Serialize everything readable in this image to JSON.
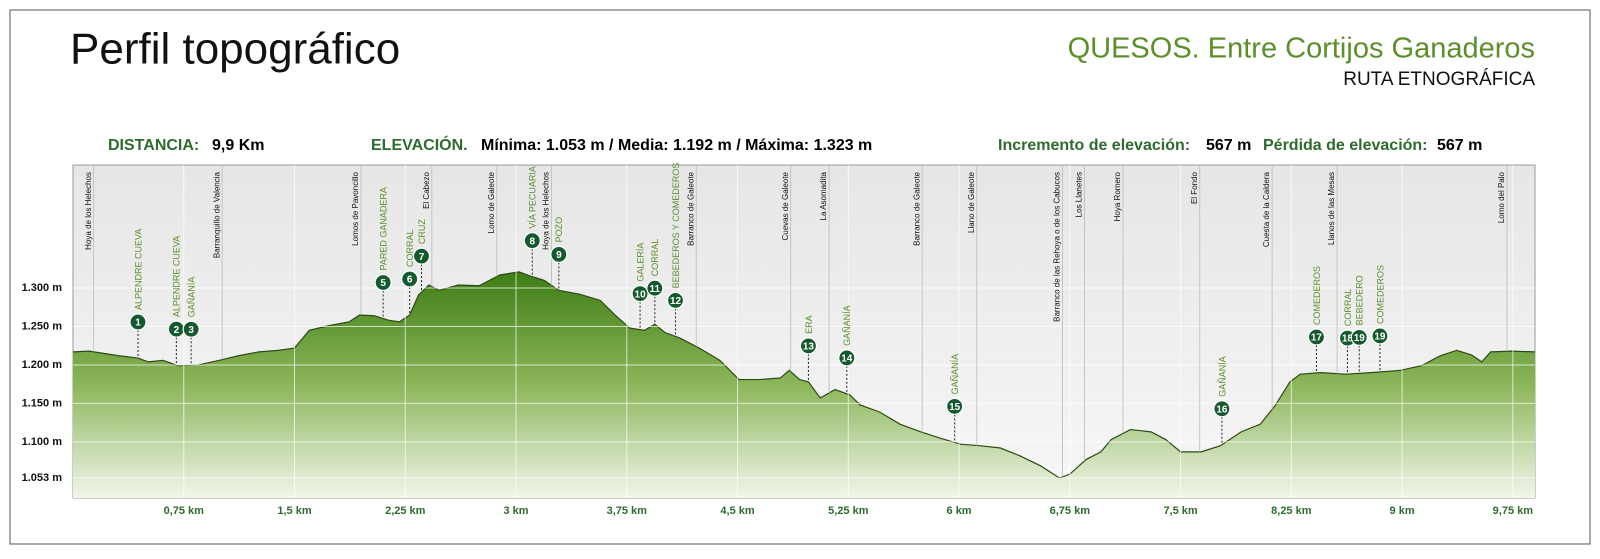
{
  "chart_data": {
    "type": "area",
    "title": "Perfil topográfico",
    "subtitle": "QUESOS. Entre Cortijos Ganaderos",
    "subtitle2": "RUTA ETNOGRÁFICA",
    "color": "#4f8a1f",
    "x": [
      0,
      0.11,
      0.31,
      0.44,
      0.51,
      0.61,
      0.71,
      0.85,
      0.99,
      1.12,
      1.26,
      1.39,
      1.5,
      1.6,
      1.73,
      1.87,
      1.94,
      2.04,
      2.14,
      2.21,
      2.28,
      2.34,
      2.41,
      2.48,
      2.61,
      2.75,
      2.89,
      3.02,
      3.09,
      3.19,
      3.29,
      3.43,
      3.57,
      3.67,
      3.77,
      3.87,
      3.94,
      4.01,
      4.11,
      4.24,
      4.38,
      4.51,
      4.65,
      4.79,
      4.85,
      4.92,
      4.98,
      5.06,
      5.16,
      5.26,
      5.33,
      5.46,
      5.6,
      5.74,
      5.87,
      6.01,
      6.14,
      6.28,
      6.41,
      6.55,
      6.68,
      6.75,
      6.86,
      6.96,
      7.03,
      7.16,
      7.3,
      7.4,
      7.5,
      7.64,
      7.77,
      7.91,
      8.04,
      8.14,
      8.24,
      8.31,
      8.45,
      8.62,
      8.79,
      8.99,
      9.13,
      9.26,
      9.37,
      9.47,
      9.54,
      9.6,
      9.74,
      9.9
    ],
    "values": [
      1217,
      1218,
      1212,
      1209,
      1204,
      1206,
      1199,
      1200,
      1206,
      1212,
      1217,
      1219,
      1222,
      1245,
      1251,
      1256,
      1265,
      1264,
      1258,
      1256,
      1265,
      1291,
      1304,
      1297,
      1304,
      1303,
      1317,
      1321,
      1316,
      1310,
      1297,
      1292,
      1284,
      1265,
      1248,
      1245,
      1253,
      1242,
      1235,
      1222,
      1206,
      1181,
      1181,
      1183,
      1193,
      1181,
      1178,
      1157,
      1168,
      1161,
      1148,
      1139,
      1123,
      1113,
      1105,
      1097,
      1095,
      1092,
      1082,
      1069,
      1053,
      1058,
      1077,
      1087,
      1103,
      1116,
      1113,
      1103,
      1087,
      1087,
      1095,
      1113,
      1123,
      1147,
      1178,
      1188,
      1190,
      1188,
      1190,
      1193,
      1199,
      1212,
      1219,
      1213,
      1204,
      1217,
      1218,
      1217
    ],
    "xlim": [
      0,
      9.9
    ],
    "ylim": [
      1027,
      1460
    ],
    "xticks": [
      {
        "value": 0.75,
        "label": "0,75 km"
      },
      {
        "value": 1.5,
        "label": "1,5 km"
      },
      {
        "value": 2.25,
        "label": "2,25 km"
      },
      {
        "value": 3,
        "label": "3 km"
      },
      {
        "value": 3.75,
        "label": "3,75 km"
      },
      {
        "value": 4.5,
        "label": "4,5 km"
      },
      {
        "value": 5.25,
        "label": "5,25 km"
      },
      {
        "value": 6,
        "label": "6 km"
      },
      {
        "value": 6.75,
        "label": "6,75 km"
      },
      {
        "value": 7.5,
        "label": "7,5 km"
      },
      {
        "value": 8.25,
        "label": "8,25 km"
      },
      {
        "value": 9,
        "label": "9 km"
      },
      {
        "value": 9.75,
        "label": "9,75 km"
      }
    ],
    "yticks": [
      {
        "value": 1053,
        "label": "1.053 m"
      },
      {
        "value": 1100,
        "label": "1.100 m"
      },
      {
        "value": 1150,
        "label": "1.150 m"
      },
      {
        "value": 1200,
        "label": "1.200 m"
      },
      {
        "value": 1250,
        "label": "1.250 m"
      },
      {
        "value": 1300,
        "label": "1.300 m"
      }
    ],
    "grid": true,
    "places": [
      {
        "name": "Hoya de los Helechos",
        "km": 0.14
      },
      {
        "name": "Barranquillo de Valencia",
        "km": 1.01
      },
      {
        "name": "Lomos de Pavoncillo",
        "km": 1.95
      },
      {
        "name": "El Cabezo",
        "km": 2.43
      },
      {
        "name": "Lomo de Galeote",
        "km": 2.87
      },
      {
        "name": "Hoya de los Helechos",
        "km": 3.24
      },
      {
        "name": "Barranco de Galeote",
        "km": 4.22
      },
      {
        "name": "Cuevas de Galeote",
        "km": 4.86
      },
      {
        "name": "La Asomadita",
        "km": 5.12
      },
      {
        "name": "Barranco de Galeote",
        "km": 5.75
      },
      {
        "name": "Llano de Galeote",
        "km": 6.12
      },
      {
        "name": "Barranco de las Rehoya o de los Cabucos",
        "km": 6.7
      },
      {
        "name": "Los Llanetes",
        "km": 6.85
      },
      {
        "name": "Hoya Romero",
        "km": 7.11
      },
      {
        "name": "El Fondo",
        "km": 7.63
      },
      {
        "name": "Cuesta de la Caldera",
        "km": 8.12
      },
      {
        "name": "Llanos de las Mesas",
        "km": 8.56
      },
      {
        "name": "Lomo del Palo",
        "km": 9.71
      }
    ],
    "waypoints": [
      {
        "number": "1",
        "label": "ALPENDRE CUEVA",
        "km": 0.44
      },
      {
        "number": "2",
        "label": "ALPENDRE CUEVA",
        "km": 0.7
      },
      {
        "number": "3",
        "label": "GAÑANÍA",
        "km": 0.8
      },
      {
        "number": "5",
        "label": "PARED GANADERA",
        "km": 2.1
      },
      {
        "number": "6",
        "label": "CORRAL",
        "km": 2.28
      },
      {
        "number": "7",
        "label": "CRUZ",
        "km": 2.36
      },
      {
        "number": "8",
        "label": "VÍA PECUARIA",
        "km": 3.11
      },
      {
        "number": "9",
        "label": "POZO",
        "km": 3.29
      },
      {
        "number": "10",
        "label": "GALERÍA",
        "km": 3.84
      },
      {
        "number": "11",
        "label": "CORRAL",
        "km": 3.94
      },
      {
        "number": "12",
        "label": "BEBEDEROS Y COMEDEROS",
        "km": 4.08
      },
      {
        "number": "13",
        "label": "ERA",
        "km": 4.98
      },
      {
        "number": "14",
        "label": "GAÑANÍA",
        "km": 5.24
      },
      {
        "number": "15",
        "label": "GAÑANÍA",
        "km": 5.97
      },
      {
        "number": "16",
        "label": "GAÑANÍA",
        "km": 7.78
      },
      {
        "number": "17",
        "label": "COMEDEROS",
        "km": 8.42
      },
      {
        "number": "18",
        "label": "CORRAL",
        "km": 8.63
      },
      {
        "number": "19",
        "label": "BEBEDERO",
        "km": 8.71
      },
      {
        "number": "19",
        "label": "COMEDEROS",
        "km": 8.85
      }
    ]
  },
  "stats": {
    "distance_label": "DISTANCIA:",
    "distance_value": "9,9 Km",
    "elevation_label": "ELEVACIÓN.",
    "elevation_value": "Mínima: 1.053 m / Media: 1.192 m / Máxima: 1.323 m",
    "gain_label": "Incremento de elevación:",
    "gain_value": "567 m",
    "loss_label": "Pérdida de elevación:",
    "loss_value": "567 m"
  }
}
